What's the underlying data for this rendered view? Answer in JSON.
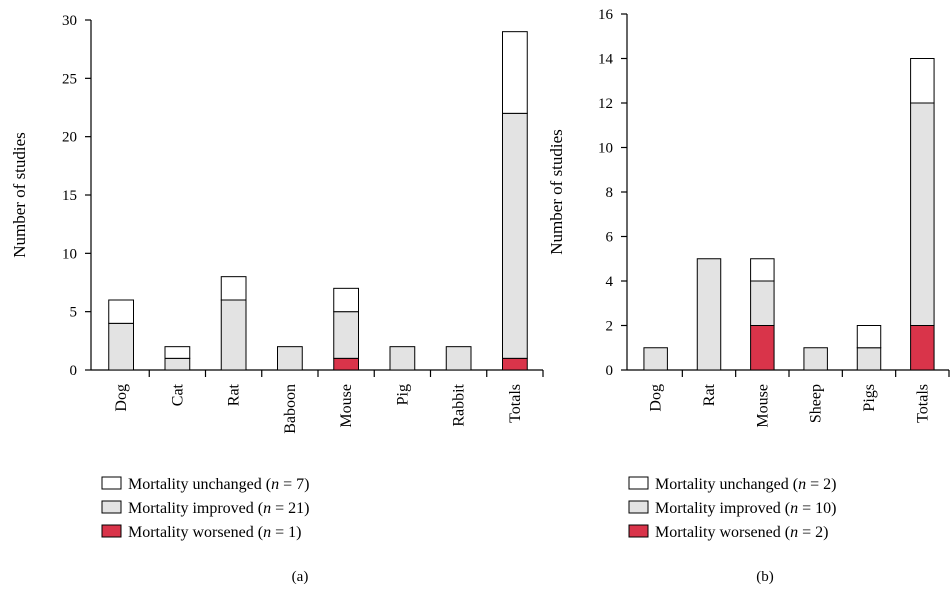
{
  "chart_data": [
    {
      "type": "bar",
      "stacked": true,
      "panel_label": "(a)",
      "ylabel": "Number of studies",
      "ylim": [
        0,
        30
      ],
      "yticks": [
        "0",
        "5",
        "10",
        "15",
        "20",
        "25",
        "30"
      ],
      "categories": [
        "Dog",
        "Cat",
        "Rat",
        "Baboon",
        "Mouse",
        "Pig",
        "Rabbit",
        "Totals"
      ],
      "series": [
        {
          "key": "worsened",
          "name": "Mortality worsened",
          "n_text": "1",
          "color": "#d9344a",
          "values": [
            0,
            0,
            0,
            0,
            1,
            0,
            0,
            1
          ]
        },
        {
          "key": "improved",
          "name": "Mortality improved",
          "n_text": "21",
          "color": "#e3e3e3",
          "values": [
            4,
            1,
            6,
            2,
            4,
            2,
            2,
            21
          ]
        },
        {
          "key": "unchanged",
          "name": "Mortality unchanged",
          "n_text": "7",
          "color": "#ffffff",
          "values": [
            2,
            1,
            2,
            0,
            2,
            0,
            0,
            7
          ]
        }
      ],
      "legend": {
        "placement": "bottom",
        "order": [
          "unchanged",
          "improved",
          "worsened"
        ]
      }
    },
    {
      "type": "bar",
      "stacked": true,
      "panel_label": "(b)",
      "ylabel": "Number of studies",
      "ylim": [
        0,
        16
      ],
      "yticks": [
        "0",
        "2",
        "4",
        "6",
        "8",
        "10",
        "12",
        "14",
        "16"
      ],
      "categories": [
        "Dog",
        "Rat",
        "Mouse",
        "Sheep",
        "Pigs",
        "Totals"
      ],
      "series": [
        {
          "key": "worsened",
          "name": "Mortality worsened",
          "n_text": "2",
          "color": "#d9344a",
          "values": [
            0,
            0,
            2,
            0,
            0,
            2
          ]
        },
        {
          "key": "improved",
          "name": "Mortality improved",
          "n_text": "10",
          "color": "#e3e3e3",
          "values": [
            1,
            5,
            2,
            1,
            1,
            10
          ]
        },
        {
          "key": "unchanged",
          "name": "Mortality unchanged",
          "n_text": "2",
          "color": "#ffffff",
          "values": [
            0,
            0,
            1,
            0,
            1,
            2
          ]
        }
      ],
      "legend": {
        "placement": "bottom",
        "order": [
          "unchanged",
          "improved",
          "worsened"
        ]
      }
    }
  ],
  "legend_n_symbol": "n",
  "legend_equals": " = "
}
